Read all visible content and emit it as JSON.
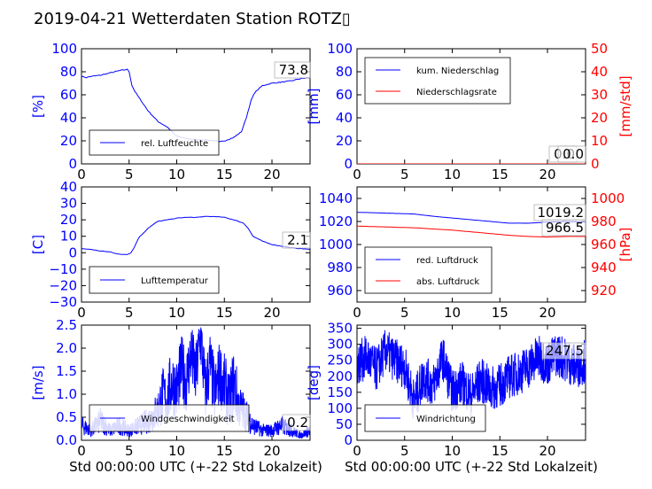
{
  "title": "2019-04-21 Wetterdaten Station ROTZ▯",
  "colors": {
    "primary": "#0000ff",
    "secondary": "#ff0000",
    "axis": "#000000"
  },
  "chart_data": [
    {
      "type": "line",
      "ylabel": "[%]",
      "ylim": [
        0,
        100
      ],
      "xlim": [
        0,
        24
      ],
      "yticks": [
        "0",
        "20",
        "40",
        "60",
        "80",
        "100"
      ],
      "xticks": [
        "0",
        "5",
        "10",
        "15",
        "20"
      ],
      "legend": [
        "rel. Luftfeuchte"
      ],
      "legend_placement": "lower-left",
      "annotations": [
        "73.8"
      ],
      "series": [
        {
          "name": "rel. Luftfeuchte",
          "color": "#0000ff",
          "x": [
            0,
            0.5,
            1,
            2,
            3,
            4,
            4.8,
            5,
            5.3,
            5.6,
            6,
            7,
            8,
            9,
            9.5,
            10,
            11,
            12,
            13,
            14,
            14.5,
            15,
            16,
            16.8,
            17.3,
            17.8,
            18.2,
            19,
            20,
            21,
            22,
            23,
            24
          ],
          "y": [
            76,
            75,
            76,
            77,
            79,
            81,
            82,
            80,
            68,
            63,
            58,
            46,
            37,
            32,
            28,
            24,
            22,
            21,
            21,
            20,
            19,
            20,
            23,
            28,
            40,
            55,
            62,
            68,
            70,
            71,
            72,
            74,
            75
          ]
        }
      ]
    },
    {
      "type": "line",
      "ylabel": "[mm]",
      "y2label": "[mm/std]",
      "ylim": [
        0,
        100
      ],
      "y2lim": [
        0,
        50
      ],
      "xlim": [
        0,
        24
      ],
      "yticks": [
        "0",
        "20",
        "40",
        "60",
        "80",
        "100"
      ],
      "y2ticks": [
        "0",
        "10",
        "20",
        "30",
        "40",
        "50"
      ],
      "xticks": [
        "0",
        "5",
        "10",
        "15",
        "20"
      ],
      "legend": [
        "kum. Niederschlag",
        "Niederschlagsrate"
      ],
      "legend_placement": "upper-left",
      "annotations": [
        "0.0",
        "0.0"
      ],
      "series": [
        {
          "name": "kum. Niederschlag",
          "color": "#0000ff",
          "x": [
            0,
            24
          ],
          "y": [
            0,
            0
          ]
        },
        {
          "name": "Niederschlagsrate",
          "color": "#ff0000",
          "x": [
            0,
            24
          ],
          "y": [
            0,
            0
          ]
        }
      ]
    },
    {
      "type": "line",
      "ylabel": "[C]",
      "ylim": [
        -30,
        40
      ],
      "xlim": [
        0,
        24
      ],
      "yticks": [
        "−30",
        "−20",
        "−10",
        "0",
        "10",
        "20",
        "30",
        "40"
      ],
      "xticks": [
        "0",
        "5",
        "10",
        "15",
        "20"
      ],
      "legend": [
        "Lufttemperatur"
      ],
      "legend_placement": "lower-left",
      "annotations": [
        "2.1"
      ],
      "series": [
        {
          "name": "Lufttemperatur",
          "color": "#0000ff",
          "x": [
            0,
            1,
            2,
            3,
            4,
            4.8,
            5.2,
            5.6,
            6,
            6.5,
            7,
            7.5,
            8,
            9,
            10,
            11,
            12,
            13,
            14,
            15,
            16,
            17,
            17.5,
            18,
            19,
            20,
            21,
            22,
            23,
            24
          ],
          "y": [
            2.5,
            2,
            1,
            0.5,
            -1,
            -1,
            0,
            4,
            9,
            12,
            15,
            17,
            19,
            20,
            21,
            21.5,
            21.5,
            22,
            22,
            21.5,
            20,
            18,
            15,
            10,
            7,
            5,
            4,
            3,
            2.5,
            2
          ]
        }
      ]
    },
    {
      "type": "line",
      "ylabel": "",
      "y2label": "[hPa]",
      "ylim": [
        950,
        1050
      ],
      "y2lim": [
        910,
        1010
      ],
      "xlim": [
        0,
        24
      ],
      "yticks": [
        "960",
        "980",
        "1000",
        "1020",
        "1040"
      ],
      "y2ticks": [
        "920",
        "940",
        "960",
        "980",
        "1000"
      ],
      "xticks": [
        "0",
        "5",
        "10",
        "15",
        "20"
      ],
      "legend": [
        "red. Luftdruck",
        "abs. Luftdruck"
      ],
      "legend_placement": "lower-left",
      "annotations": [
        "1019.2",
        "966.5"
      ],
      "series": [
        {
          "name": "red. Luftdruck",
          "color": "#0000ff",
          "x": [
            0,
            2,
            4,
            6,
            8,
            10,
            12,
            14,
            16,
            18,
            20,
            22,
            24
          ],
          "y": [
            1028,
            1027.5,
            1027,
            1026.5,
            1024.5,
            1023,
            1021.5,
            1020,
            1018.5,
            1018.5,
            1019.5,
            1020,
            1019.5
          ]
        },
        {
          "name": "abs. Luftdruck",
          "color": "#ff0000",
          "x": [
            0,
            2,
            4,
            6,
            8,
            10,
            12,
            14,
            16,
            18,
            20,
            22,
            24
          ],
          "y": [
            976,
            975.5,
            975,
            974.5,
            973.5,
            972.5,
            971,
            969.5,
            968,
            967,
            966.5,
            967,
            967
          ]
        }
      ]
    },
    {
      "type": "line",
      "ylabel": "[m/s]",
      "ylim": [
        0,
        2.5
      ],
      "xlim": [
        0,
        24
      ],
      "yticks": [
        "0.0",
        "0.5",
        "1.0",
        "1.5",
        "2.0",
        "2.5"
      ],
      "xticks": [
        "0",
        "5",
        "10",
        "15",
        "20"
      ],
      "xlabel": "Std 00:00:00 UTC (+-22 Std Lokalzeit)",
      "legend": [
        "Windgeschwindigkeit"
      ],
      "legend_placement": "lower-left",
      "annotations": [
        "0.2"
      ],
      "series": [
        {
          "name": "Windgeschwindigkeit",
          "color": "#0000ff",
          "x": [
            0,
            1,
            2,
            3,
            4,
            5,
            6,
            7,
            8,
            8.5,
            9,
            9.5,
            10,
            10.5,
            11,
            11.5,
            12,
            12.5,
            13,
            13.5,
            14,
            14.5,
            15,
            15.5,
            16,
            16.5,
            17,
            18,
            19,
            20,
            21,
            22,
            23,
            24
          ],
          "y": [
            0.3,
            0.2,
            0.4,
            0.2,
            0.3,
            0.2,
            0.3,
            0.4,
            0.6,
            0.9,
            0.8,
            1.2,
            1.0,
            1.5,
            1.2,
            1.8,
            1.3,
            2.2,
            1.0,
            1.6,
            0.9,
            1.4,
            1.1,
            0.8,
            1.2,
            0.7,
            0.6,
            0.3,
            0.2,
            0.2,
            0.3,
            0.2,
            0.1,
            0.2
          ]
        }
      ]
    },
    {
      "type": "line",
      "ylabel": "[deg]",
      "ylim": [
        0,
        360
      ],
      "xlim": [
        0,
        24
      ],
      "yticks": [
        "0",
        "50",
        "100",
        "150",
        "200",
        "250",
        "300",
        "350"
      ],
      "xticks": [
        "0",
        "5",
        "10",
        "15",
        "20"
      ],
      "xlabel": "Std 00:00:00 UTC (+-22 Std Lokalzeit)",
      "legend": [
        "Windrichtung"
      ],
      "legend_placement": "lower-left",
      "annotations": [
        "247.5"
      ],
      "series": [
        {
          "name": "Windrichtung",
          "color": "#0000ff",
          "x": [
            0,
            1,
            2,
            3,
            4,
            5,
            6,
            7,
            8,
            9,
            10,
            11,
            12,
            13,
            14,
            15,
            16,
            17,
            18,
            19,
            20,
            21,
            22,
            23,
            24
          ],
          "y": [
            240,
            260,
            220,
            280,
            250,
            230,
            120,
            200,
            170,
            260,
            150,
            180,
            140,
            190,
            160,
            170,
            200,
            210,
            230,
            260,
            240,
            270,
            250,
            230,
            250
          ]
        }
      ]
    }
  ]
}
